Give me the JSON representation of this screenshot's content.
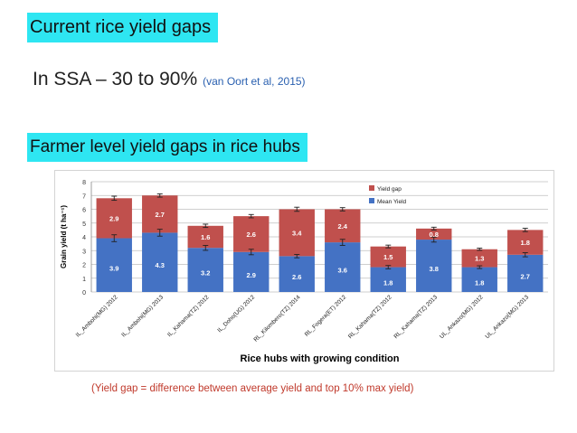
{
  "slide": {
    "title": "Current rice yield gaps",
    "subtitle_main": "In SSA – 30 to 90%",
    "subtitle_cite": "(van Oort et al, 2015)",
    "section_heading": "Farmer level yield gaps in rice hubs",
    "footnote": "(Yield gap = difference between average yield and top 10% max yield)"
  },
  "colors": {
    "mean": "#4472c4",
    "gap": "#c0504d",
    "highlight": "#2ee6f2"
  },
  "chart_data": {
    "type": "bar",
    "stacked": true,
    "categories": [
      "IL_Ambohi(MG) 2012",
      "IL_Ambohi(MG) 2013",
      "IL_Kahama(TZ) 2012",
      "IL_Doho(UG) 2012",
      "RL_Kilombero(TZ) 2014",
      "RL_Fogera(ET) 2012",
      "RL_Kahama(TZ) 2012",
      "RL_Kahama(TZ) 2013",
      "UL_Ankazo(MG) 2012",
      "UL_Ankazo(MG) 2013"
    ],
    "series": [
      {
        "name": "Mean Yield",
        "values": [
          3.9,
          4.3,
          3.2,
          2.9,
          2.6,
          3.6,
          1.8,
          3.8,
          1.8,
          2.7
        ]
      },
      {
        "name": "Yield gap",
        "values": [
          2.9,
          2.7,
          1.6,
          2.6,
          3.4,
          2.4,
          1.5,
          0.8,
          1.3,
          1.8
        ]
      }
    ],
    "mean_error": [
      0.25,
      0.25,
      0.18,
      0.2,
      0.12,
      0.22,
      0.12,
      0.18,
      0.1,
      0.15
    ],
    "total_error": [
      0.15,
      0.12,
      0.12,
      0.12,
      0.15,
      0.12,
      0.1,
      0.1,
      0.08,
      0.12
    ],
    "xlabel": "Rice hubs with growing condition",
    "ylabel": "Grain yield (t ha⁻¹)",
    "ylim": [
      0,
      8
    ],
    "yticks": [
      "0",
      "1",
      "2",
      "3",
      "4",
      "5",
      "6",
      "7",
      "8"
    ],
    "legend": [
      "Yield gap",
      "Mean Yield"
    ],
    "legend_position": "top-right",
    "grid": true
  }
}
